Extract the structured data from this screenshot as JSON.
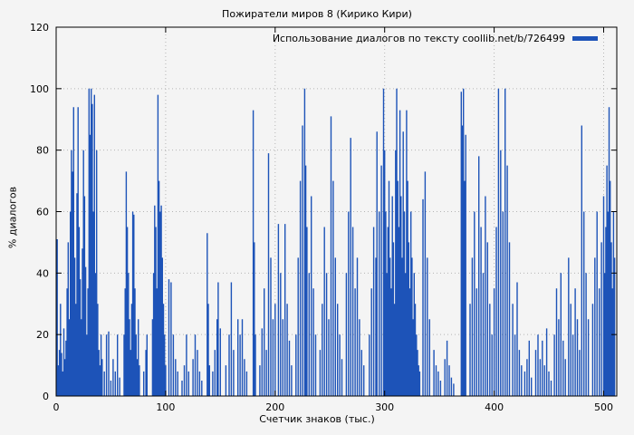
{
  "chart_data": {
    "type": "bar",
    "title": "Пожиратели миров 8 (Кирико Кири)",
    "legend": "Использование диалогов по тексту coollib.net/b/726499",
    "xlabel": "Счетчик знаков (тыс.)",
    "ylabel": "% диалогов",
    "xlim": [
      0,
      512
    ],
    "ylim": [
      0,
      120
    ],
    "x_ticks": [
      0,
      100,
      200,
      300,
      400,
      500
    ],
    "y_ticks": [
      0,
      20,
      40,
      60,
      80,
      100,
      120
    ],
    "grid": true,
    "legend_position": "top-right",
    "bar_color": "#1d53b8",
    "grid_color": "#b5b5b5",
    "series_points": [
      [
        1,
        51
      ],
      [
        2,
        10
      ],
      [
        3,
        15
      ],
      [
        4,
        30
      ],
      [
        5,
        14
      ],
      [
        6,
        8
      ],
      [
        7,
        22
      ],
      [
        8,
        12
      ],
      [
        9,
        18
      ],
      [
        10,
        35
      ],
      [
        11,
        50
      ],
      [
        12,
        25
      ],
      [
        13,
        60
      ],
      [
        14,
        80
      ],
      [
        15,
        73
      ],
      [
        16,
        94
      ],
      [
        17,
        45
      ],
      [
        18,
        30
      ],
      [
        19,
        66
      ],
      [
        20,
        94
      ],
      [
        21,
        55
      ],
      [
        22,
        38
      ],
      [
        23,
        25
      ],
      [
        24,
        48
      ],
      [
        25,
        80
      ],
      [
        26,
        65
      ],
      [
        27,
        42
      ],
      [
        28,
        20
      ],
      [
        29,
        35
      ],
      [
        30,
        100
      ],
      [
        31,
        85
      ],
      [
        32,
        100
      ],
      [
        33,
        95
      ],
      [
        34,
        60
      ],
      [
        35,
        98
      ],
      [
        36,
        40
      ],
      [
        37,
        80
      ],
      [
        38,
        30
      ],
      [
        39,
        15
      ],
      [
        40,
        10
      ],
      [
        41,
        20
      ],
      [
        42,
        12
      ],
      [
        44,
        8
      ],
      [
        46,
        20
      ],
      [
        48,
        21
      ],
      [
        50,
        5
      ],
      [
        52,
        12
      ],
      [
        54,
        8
      ],
      [
        56,
        20
      ],
      [
        58,
        6
      ],
      [
        62,
        20
      ],
      [
        63,
        35
      ],
      [
        64,
        73
      ],
      [
        65,
        55
      ],
      [
        66,
        40
      ],
      [
        67,
        25
      ],
      [
        68,
        15
      ],
      [
        69,
        30
      ],
      [
        70,
        60
      ],
      [
        71,
        59
      ],
      [
        72,
        35
      ],
      [
        73,
        20
      ],
      [
        74,
        12
      ],
      [
        75,
        25
      ],
      [
        76,
        10
      ],
      [
        80,
        8
      ],
      [
        82,
        15
      ],
      [
        83,
        20
      ],
      [
        88,
        25
      ],
      [
        89,
        40
      ],
      [
        90,
        62
      ],
      [
        91,
        55
      ],
      [
        92,
        35
      ],
      [
        93,
        98
      ],
      [
        94,
        70
      ],
      [
        95,
        60
      ],
      [
        96,
        62
      ],
      [
        97,
        45
      ],
      [
        98,
        30
      ],
      [
        99,
        20
      ],
      [
        100,
        10
      ],
      [
        103,
        38
      ],
      [
        105,
        37
      ],
      [
        107,
        20
      ],
      [
        109,
        12
      ],
      [
        111,
        8
      ],
      [
        115,
        5
      ],
      [
        117,
        10
      ],
      [
        119,
        20
      ],
      [
        121,
        8
      ],
      [
        125,
        12
      ],
      [
        127,
        20
      ],
      [
        129,
        15
      ],
      [
        131,
        8
      ],
      [
        133,
        5
      ],
      [
        138,
        53
      ],
      [
        139,
        30
      ],
      [
        140,
        10
      ],
      [
        143,
        8
      ],
      [
        145,
        15
      ],
      [
        147,
        25
      ],
      [
        148,
        37
      ],
      [
        150,
        22
      ],
      [
        155,
        10
      ],
      [
        158,
        20
      ],
      [
        160,
        37
      ],
      [
        162,
        15
      ],
      [
        166,
        25
      ],
      [
        168,
        20
      ],
      [
        170,
        25
      ],
      [
        172,
        12
      ],
      [
        174,
        8
      ],
      [
        180,
        93
      ],
      [
        181,
        50
      ],
      [
        182,
        20
      ],
      [
        186,
        10
      ],
      [
        188,
        22
      ],
      [
        190,
        35
      ],
      [
        192,
        15
      ],
      [
        194,
        79
      ],
      [
        196,
        45
      ],
      [
        198,
        25
      ],
      [
        200,
        30
      ],
      [
        203,
        56
      ],
      [
        205,
        40
      ],
      [
        207,
        25
      ],
      [
        209,
        56
      ],
      [
        211,
        30
      ],
      [
        213,
        18
      ],
      [
        215,
        10
      ],
      [
        219,
        20
      ],
      [
        221,
        45
      ],
      [
        223,
        70
      ],
      [
        225,
        88
      ],
      [
        227,
        100
      ],
      [
        228,
        75
      ],
      [
        229,
        55
      ],
      [
        231,
        40
      ],
      [
        233,
        65
      ],
      [
        235,
        35
      ],
      [
        237,
        20
      ],
      [
        241,
        15
      ],
      [
        243,
        30
      ],
      [
        245,
        55
      ],
      [
        247,
        40
      ],
      [
        249,
        25
      ],
      [
        251,
        91
      ],
      [
        253,
        70
      ],
      [
        255,
        45
      ],
      [
        257,
        30
      ],
      [
        259,
        20
      ],
      [
        261,
        12
      ],
      [
        265,
        40
      ],
      [
        267,
        60
      ],
      [
        269,
        84
      ],
      [
        271,
        55
      ],
      [
        273,
        35
      ],
      [
        275,
        45
      ],
      [
        277,
        25
      ],
      [
        279,
        15
      ],
      [
        281,
        10
      ],
      [
        286,
        20
      ],
      [
        288,
        35
      ],
      [
        290,
        55
      ],
      [
        292,
        45
      ],
      [
        293,
        86
      ],
      [
        295,
        60
      ],
      [
        297,
        75
      ],
      [
        299,
        100
      ],
      [
        300,
        80
      ],
      [
        301,
        60
      ],
      [
        302,
        40
      ],
      [
        303,
        55
      ],
      [
        304,
        70
      ],
      [
        305,
        45
      ],
      [
        306,
        35
      ],
      [
        307,
        65
      ],
      [
        308,
        50
      ],
      [
        309,
        30
      ],
      [
        310,
        80
      ],
      [
        311,
        100
      ],
      [
        312,
        70
      ],
      [
        313,
        55
      ],
      [
        314,
        93
      ],
      [
        315,
        65
      ],
      [
        316,
        45
      ],
      [
        317,
        86
      ],
      [
        318,
        60
      ],
      [
        319,
        40
      ],
      [
        320,
        93
      ],
      [
        321,
        70
      ],
      [
        322,
        50
      ],
      [
        323,
        35
      ],
      [
        324,
        60
      ],
      [
        325,
        45
      ],
      [
        326,
        25
      ],
      [
        327,
        40
      ],
      [
        328,
        30
      ],
      [
        329,
        20
      ],
      [
        330,
        15
      ],
      [
        331,
        10
      ],
      [
        332,
        8
      ],
      [
        335,
        64
      ],
      [
        337,
        73
      ],
      [
        339,
        45
      ],
      [
        341,
        25
      ],
      [
        345,
        15
      ],
      [
        347,
        10
      ],
      [
        349,
        8
      ],
      [
        351,
        5
      ],
      [
        355,
        12
      ],
      [
        357,
        18
      ],
      [
        359,
        10
      ],
      [
        361,
        6
      ],
      [
        363,
        4
      ],
      [
        370,
        99
      ],
      [
        371,
        88
      ],
      [
        372,
        100
      ],
      [
        373,
        70
      ],
      [
        374,
        85
      ],
      [
        378,
        30
      ],
      [
        380,
        45
      ],
      [
        382,
        60
      ],
      [
        384,
        35
      ],
      [
        386,
        78
      ],
      [
        388,
        55
      ],
      [
        390,
        40
      ],
      [
        392,
        65
      ],
      [
        394,
        50
      ],
      [
        396,
        30
      ],
      [
        398,
        20
      ],
      [
        400,
        35
      ],
      [
        402,
        55
      ],
      [
        404,
        100
      ],
      [
        406,
        80
      ],
      [
        408,
        60
      ],
      [
        410,
        100
      ],
      [
        412,
        75
      ],
      [
        414,
        50
      ],
      [
        417,
        30
      ],
      [
        419,
        20
      ],
      [
        421,
        37
      ],
      [
        423,
        15
      ],
      [
        425,
        10
      ],
      [
        428,
        8
      ],
      [
        430,
        12
      ],
      [
        432,
        18
      ],
      [
        434,
        6
      ],
      [
        438,
        15
      ],
      [
        440,
        20
      ],
      [
        442,
        12
      ],
      [
        444,
        18
      ],
      [
        446,
        10
      ],
      [
        448,
        22
      ],
      [
        450,
        8
      ],
      [
        452,
        5
      ],
      [
        455,
        20
      ],
      [
        457,
        35
      ],
      [
        459,
        25
      ],
      [
        461,
        40
      ],
      [
        463,
        18
      ],
      [
        465,
        12
      ],
      [
        468,
        45
      ],
      [
        470,
        30
      ],
      [
        472,
        20
      ],
      [
        474,
        35
      ],
      [
        476,
        25
      ],
      [
        478,
        15
      ],
      [
        480,
        88
      ],
      [
        482,
        60
      ],
      [
        484,
        40
      ],
      [
        486,
        25
      ],
      [
        490,
        30
      ],
      [
        492,
        45
      ],
      [
        494,
        60
      ],
      [
        496,
        35
      ],
      [
        498,
        50
      ],
      [
        500,
        65
      ],
      [
        501,
        40
      ],
      [
        502,
        55
      ],
      [
        503,
        75
      ],
      [
        504,
        60
      ],
      [
        505,
        94
      ],
      [
        506,
        70
      ],
      [
        507,
        50
      ],
      [
        508,
        35
      ],
      [
        509,
        60
      ],
      [
        510,
        45
      ]
    ]
  }
}
